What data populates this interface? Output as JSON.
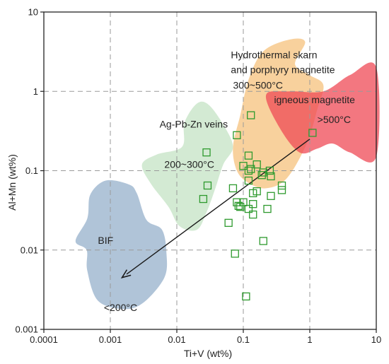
{
  "chart_data": {
    "type": "scatter",
    "xlabel": "Ti+V (wt%)",
    "ylabel": "Al+Mn (wt%)",
    "xscale": "log",
    "yscale": "log",
    "xlim": [
      0.0001,
      10
    ],
    "ylim": [
      0.001,
      10
    ],
    "x_ticks": [
      {
        "value": 0.0001,
        "label": "0.0001"
      },
      {
        "value": 0.001,
        "label": "0.001"
      },
      {
        "value": 0.01,
        "label": "0.01"
      },
      {
        "value": 0.1,
        "label": "0.1"
      },
      {
        "value": 1,
        "label": "1"
      },
      {
        "value": 10,
        "label": "10"
      }
    ],
    "y_ticks": [
      {
        "value": 0.001,
        "label": "0.001"
      },
      {
        "value": 0.01,
        "label": "0.01"
      },
      {
        "value": 0.1,
        "label": "0.1"
      },
      {
        "value": 1,
        "label": "1"
      },
      {
        "value": 10,
        "label": "10"
      }
    ],
    "grid": true,
    "grid_style": "dashed",
    "marker": {
      "shape": "open-square",
      "color": "#2e9a2e"
    },
    "points": [
      [
        0.13,
        0.5
      ],
      [
        1.1,
        0.3
      ],
      [
        0.08,
        0.28
      ],
      [
        0.028,
        0.17
      ],
      [
        0.12,
        0.155
      ],
      [
        0.16,
        0.12
      ],
      [
        0.1,
        0.115
      ],
      [
        0.12,
        0.1
      ],
      [
        0.13,
        0.105
      ],
      [
        0.2,
        0.095
      ],
      [
        0.25,
        0.1
      ],
      [
        0.19,
        0.088
      ],
      [
        0.26,
        0.085
      ],
      [
        0.12,
        0.075
      ],
      [
        0.029,
        0.065
      ],
      [
        0.38,
        0.065
      ],
      [
        0.07,
        0.06
      ],
      [
        0.38,
        0.057
      ],
      [
        0.16,
        0.055
      ],
      [
        0.14,
        0.052
      ],
      [
        0.26,
        0.048
      ],
      [
        0.025,
        0.044
      ],
      [
        0.08,
        0.04
      ],
      [
        0.1,
        0.04
      ],
      [
        0.14,
        0.038
      ],
      [
        0.085,
        0.036
      ],
      [
        0.09,
        0.035
      ],
      [
        0.12,
        0.033
      ],
      [
        0.23,
        0.033
      ],
      [
        0.14,
        0.028
      ],
      [
        0.06,
        0.022
      ],
      [
        0.2,
        0.013
      ],
      [
        0.075,
        0.009
      ],
      [
        0.11,
        0.0026
      ]
    ],
    "fields": [
      {
        "name": "hydrothermal",
        "color": "#f5c27c",
        "opacity": 0.75,
        "polygon": [
          [
            0.09,
            0.5
          ],
          [
            0.12,
            1.4
          ],
          [
            0.2,
            3.2
          ],
          [
            0.5,
            4.5
          ],
          [
            0.85,
            4.2
          ],
          [
            0.6,
            2.2
          ],
          [
            1.0,
            1.6
          ],
          [
            1.6,
            1.2
          ],
          [
            1.3,
            0.6
          ],
          [
            0.9,
            0.22
          ],
          [
            0.45,
            0.08
          ],
          [
            0.22,
            0.06
          ],
          [
            0.12,
            0.07
          ],
          [
            0.08,
            0.1
          ],
          [
            0.07,
            0.2
          ]
        ]
      },
      {
        "name": "igneous",
        "color": "#ef4a55",
        "opacity": 0.75,
        "polygon": [
          [
            0.22,
            0.9
          ],
          [
            0.5,
            1.0
          ],
          [
            1.6,
            1.0
          ],
          [
            4,
            1.6
          ],
          [
            10,
            2.0
          ],
          [
            10,
            0.15
          ],
          [
            4,
            0.17
          ],
          [
            2.2,
            0.22
          ],
          [
            1.3,
            0.19
          ],
          [
            0.7,
            0.17
          ],
          [
            0.35,
            0.35
          ]
        ]
      },
      {
        "name": "ag-pb-zn",
        "color": "#c8e5c8",
        "opacity": 0.8,
        "polygon": [
          [
            0.012,
            0.2
          ],
          [
            0.013,
            0.4
          ],
          [
            0.02,
            0.7
          ],
          [
            0.03,
            0.68
          ],
          [
            0.05,
            0.38
          ],
          [
            0.07,
            0.2
          ],
          [
            0.05,
            0.12
          ],
          [
            0.038,
            0.06
          ],
          [
            0.028,
            0.03
          ],
          [
            0.02,
            0.018
          ],
          [
            0.011,
            0.02
          ],
          [
            0.0075,
            0.035
          ],
          [
            0.004,
            0.07
          ],
          [
            0.003,
            0.12
          ],
          [
            0.005,
            0.16
          ]
        ]
      },
      {
        "name": "bif",
        "color": "#a7bed4",
        "opacity": 0.9,
        "polygon": [
          [
            0.00085,
            0.075
          ],
          [
            0.0019,
            0.067
          ],
          [
            0.0025,
            0.052
          ],
          [
            0.0035,
            0.024
          ],
          [
            0.006,
            0.018
          ],
          [
            0.007,
            0.009
          ],
          [
            0.0065,
            0.0045
          ],
          [
            0.0032,
            0.0022
          ],
          [
            0.0016,
            0.0018
          ],
          [
            0.00065,
            0.0023
          ],
          [
            0.00045,
            0.0055
          ],
          [
            0.00044,
            0.01
          ],
          [
            0.0003,
            0.013
          ],
          [
            0.00045,
            0.025
          ],
          [
            0.0005,
            0.05
          ]
        ]
      }
    ],
    "arrow": {
      "from": [
        1.0,
        0.25
      ],
      "to": [
        0.0015,
        0.0045
      ]
    },
    "annotations": [
      {
        "text": "Hydrothermal skarn",
        "x": 0.065,
        "y": 2.6
      },
      {
        "text": "and porphyry magnetite",
        "x": 0.065,
        "y": 1.7
      },
      {
        "text": "300~500°C",
        "x": 0.07,
        "y": 1.08
      },
      {
        "text": "igneous magnetite",
        "x": 0.29,
        "y": 0.71
      },
      {
        "text": ">500°C",
        "x": 1.3,
        "y": 0.4
      },
      {
        "text": "Ag-Pb-Zn veins",
        "x": 0.0055,
        "y": 0.35
      },
      {
        "text": "200~300°C",
        "x": 0.0065,
        "y": 0.108
      },
      {
        "text": "BIF",
        "x": 0.00065,
        "y": 0.012
      },
      {
        "text": "<200°C",
        "x": 0.0008,
        "y": 0.0017
      }
    ]
  }
}
